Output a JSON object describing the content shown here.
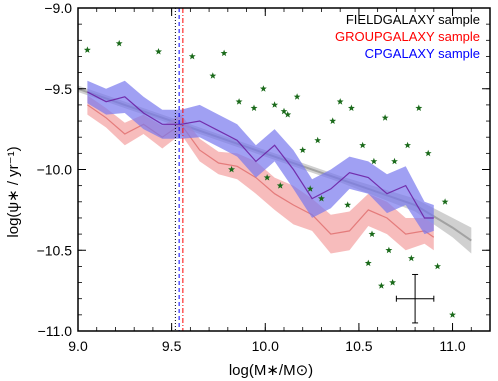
{
  "chart_data": {
    "type": "line",
    "title": "",
    "xlabel": "log(M∗/M⊙)",
    "ylabel": "log(ψ∗ / yr⁻¹)",
    "xlim": [
      9.0,
      11.2
    ],
    "ylim": [
      -11.0,
      -9.0
    ],
    "xticks": [
      9.0,
      9.5,
      10.0,
      10.5,
      11.0
    ],
    "xtick_labels": [
      "9.0",
      "9.5",
      "10.0",
      "10.5",
      "11.0"
    ],
    "yticks": [
      -9.0,
      -9.5,
      -10.0,
      -10.5,
      -11.0
    ],
    "ytick_labels": [
      "−9.0",
      "−9.5",
      "−10.0",
      "−10.5",
      "−11.0"
    ],
    "grid": false,
    "legend_position": "top-right",
    "legend": [
      {
        "label": "FIELDGALAXY sample",
        "color": "#000000"
      },
      {
        "label": "GROUPGALAXY sample",
        "color": "#ff0000"
      },
      {
        "label": "CPGALAXY sample",
        "color": "#0000ff"
      }
    ],
    "colors": {
      "field": "#aaaaaa",
      "group": "#f4a0a0",
      "cp": "#7777ee",
      "cp_line": "#6a1aa0",
      "stars": "#1a6a1a"
    },
    "series": [
      {
        "name": "FIELDGALAXY sample",
        "kind": "band",
        "x": [
          9.0,
          9.2,
          9.4,
          9.6,
          9.8,
          10.0,
          10.2,
          10.4,
          10.6,
          10.8,
          11.0,
          11.1
        ],
        "y": [
          -9.5,
          -9.58,
          -9.66,
          -9.74,
          -9.82,
          -9.9,
          -9.98,
          -10.06,
          -10.14,
          -10.22,
          -10.36,
          -10.44
        ],
        "spread": [
          0.02,
          0.02,
          0.02,
          0.02,
          0.02,
          0.02,
          0.02,
          0.02,
          0.03,
          0.04,
          0.06,
          0.08
        ]
      },
      {
        "name": "GROUPGALAXY sample",
        "kind": "band",
        "x": [
          9.05,
          9.15,
          9.25,
          9.35,
          9.45,
          9.55,
          9.65,
          9.75,
          9.85,
          9.95,
          10.05,
          10.15,
          10.25,
          10.35,
          10.45,
          10.55,
          10.65,
          10.75,
          10.85,
          10.9
        ],
        "y": [
          -9.6,
          -9.68,
          -9.78,
          -9.72,
          -9.8,
          -9.72,
          -9.88,
          -9.96,
          -9.98,
          -10.05,
          -10.15,
          -10.22,
          -10.28,
          -10.4,
          -10.38,
          -10.25,
          -10.3,
          -10.4,
          -10.38,
          -10.42
        ],
        "spread": [
          0.06,
          0.06,
          0.07,
          0.06,
          0.07,
          0.06,
          0.07,
          0.07,
          0.08,
          0.1,
          0.1,
          0.12,
          0.1,
          0.12,
          0.12,
          0.1,
          0.1,
          0.1,
          0.08,
          0.08
        ]
      },
      {
        "name": "CPGALAXY sample",
        "kind": "band",
        "x": [
          9.05,
          9.15,
          9.25,
          9.35,
          9.45,
          9.55,
          9.65,
          9.75,
          9.85,
          9.95,
          10.05,
          10.15,
          10.25,
          10.35,
          10.45,
          10.55,
          10.65,
          10.75,
          10.85,
          10.9
        ],
        "y": [
          -9.52,
          -9.58,
          -9.55,
          -9.65,
          -9.72,
          -9.72,
          -9.7,
          -9.76,
          -9.82,
          -9.95,
          -9.85,
          -10.0,
          -10.18,
          -10.12,
          -10.02,
          -10.05,
          -10.15,
          -10.1,
          -10.3,
          -10.3
        ],
        "spread": [
          0.07,
          0.08,
          0.1,
          0.1,
          0.09,
          0.09,
          0.1,
          0.1,
          0.1,
          0.1,
          0.1,
          0.12,
          0.12,
          0.12,
          0.1,
          0.1,
          0.12,
          0.12,
          0.1,
          0.08
        ]
      }
    ],
    "vlines": [
      {
        "x": 9.52,
        "color": "#000000",
        "style": "dotted"
      },
      {
        "x": 9.54,
        "color": "#0000ff",
        "style": "dashed"
      },
      {
        "x": 9.56,
        "color": "#ff0000",
        "style": "dashdot"
      }
    ],
    "stars": {
      "x": [
        9.05,
        9.22,
        9.43,
        9.61,
        9.72,
        9.78,
        9.86,
        9.94,
        9.99,
        10.05,
        10.1,
        10.17,
        10.2,
        10.28,
        10.36,
        10.4,
        10.46,
        10.52,
        10.58,
        10.64,
        10.69,
        10.76,
        10.82,
        10.87,
        9.82,
        10.01,
        10.08,
        10.24,
        10.3,
        10.44,
        10.57,
        10.66,
        10.78,
        10.92,
        10.96,
        10.62,
        10.55,
        10.68,
        11.0,
        10.12
      ],
      "y": [
        -9.26,
        -9.22,
        -9.27,
        -9.3,
        -9.42,
        -9.28,
        -9.58,
        -9.62,
        -9.5,
        -9.6,
        -9.64,
        -9.55,
        -9.88,
        -9.82,
        -9.7,
        -9.58,
        -9.62,
        -9.85,
        -9.95,
        -9.68,
        -9.95,
        -9.85,
        -9.62,
        -9.9,
        -10.0,
        -10.05,
        -10.1,
        -10.12,
        -10.18,
        -10.22,
        -10.4,
        -10.5,
        -10.55,
        -10.6,
        -10.2,
        -10.72,
        -10.58,
        -10.7,
        -10.9,
        -9.66
      ]
    },
    "error_bar": {
      "x": 10.8,
      "y": -10.8,
      "xerr": 0.1,
      "yerr": 0.15
    }
  }
}
